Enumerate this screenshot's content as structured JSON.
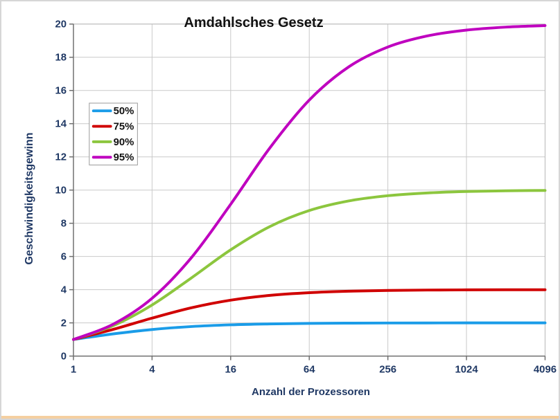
{
  "chart_data": {
    "type": "line",
    "title": "Amdahlsches Gesetz",
    "xlabel": "Anzahl der Prozessoren",
    "ylabel": "Geschwindigkeitsgewinn",
    "x_scale": "log2",
    "xlim": [
      1,
      4096
    ],
    "ylim": [
      0,
      20
    ],
    "grid": true,
    "legend_position": "upper-left-inside",
    "text_color": "#1f3864",
    "x": [
      1,
      2,
      4,
      8,
      16,
      32,
      64,
      128,
      256,
      512,
      1024,
      2048,
      4096
    ],
    "x_ticks": [
      1,
      4,
      16,
      64,
      256,
      1024,
      4096
    ],
    "y_ticks": [
      0,
      2,
      4,
      6,
      8,
      10,
      12,
      14,
      16,
      18,
      20
    ],
    "series": [
      {
        "name": "50%",
        "parallel_fraction": 0.5,
        "color": "#1a9ce8",
        "values": [
          1.0,
          1.333,
          1.6,
          1.778,
          1.882,
          1.939,
          1.969,
          1.984,
          1.992,
          1.996,
          1.998,
          1.999,
          2.0
        ]
      },
      {
        "name": "75%",
        "parallel_fraction": 0.75,
        "color": "#d00000",
        "values": [
          1.0,
          1.6,
          2.286,
          2.909,
          3.368,
          3.657,
          3.82,
          3.908,
          3.953,
          3.977,
          3.988,
          3.994,
          3.997
        ]
      },
      {
        "name": "90%",
        "parallel_fraction": 0.9,
        "color": "#8cc63e",
        "values": [
          1.0,
          1.818,
          3.077,
          4.706,
          6.4,
          7.805,
          8.767,
          9.343,
          9.661,
          9.827,
          9.913,
          9.956,
          9.978
        ]
      },
      {
        "name": "95%",
        "parallel_fraction": 0.95,
        "color": "#bf00bf",
        "values": [
          1.0,
          1.905,
          3.478,
          5.926,
          9.143,
          12.549,
          15.422,
          17.415,
          18.618,
          19.284,
          19.636,
          19.816,
          19.908
        ]
      }
    ]
  }
}
